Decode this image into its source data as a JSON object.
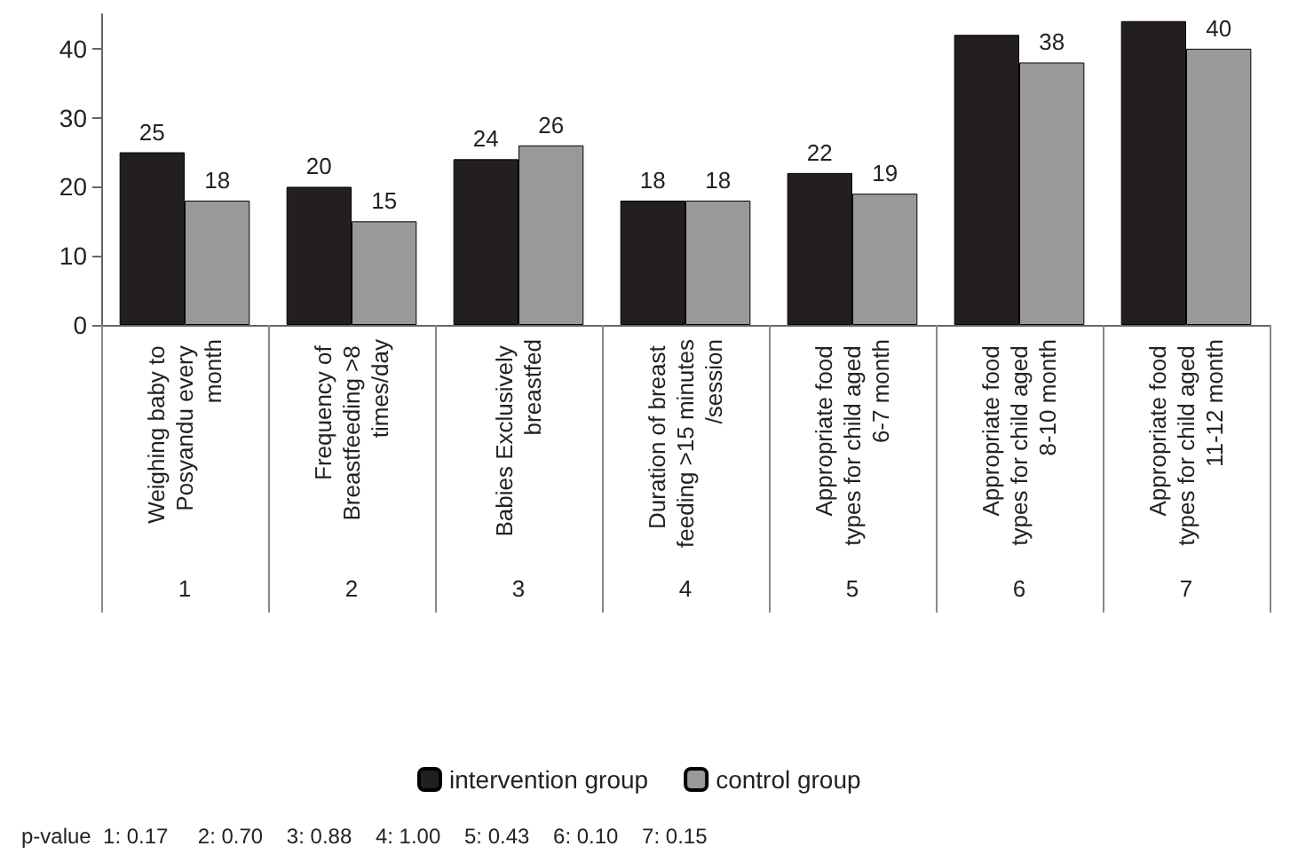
{
  "chart_data": {
    "type": "bar",
    "categories": [
      "Weighing baby to Posyandu every month",
      "Frequency of Breastfeeding >8 times/day",
      "Babies Exclusively breastfed",
      "Duration of breast feeding >15 minutes/session",
      "Appropriate food types for child aged 6-7 month",
      "Appropriate food types for child aged 8-10 month",
      "Appropriate food types for child aged 11-12 month"
    ],
    "series": [
      {
        "name": "intervention group",
        "color": "#231f20",
        "values": [
          25,
          20,
          24,
          18,
          22,
          42,
          44
        ],
        "value_labels": [
          "25",
          "20",
          "24",
          "18",
          "22",
          null,
          null
        ]
      },
      {
        "name": "control group",
        "color": "#999999",
        "values": [
          18,
          15,
          26,
          18,
          19,
          38,
          40
        ],
        "value_labels": [
          "18",
          "15",
          "26",
          "18",
          "19",
          "38",
          "40"
        ]
      }
    ],
    "ylim": [
      0,
      45
    ],
    "yticks": [
      0,
      10,
      20,
      30,
      40
    ],
    "grid": false,
    "legend": "bottom",
    "annotations": [
      "1",
      "2",
      "3",
      "4",
      "5",
      "6",
      "7",
      "p-value  1: 0.17     2: 0.70    3: 0.88    4: 1.00    5: 0.43    6: 0.10    7: 0.15"
    ]
  }
}
